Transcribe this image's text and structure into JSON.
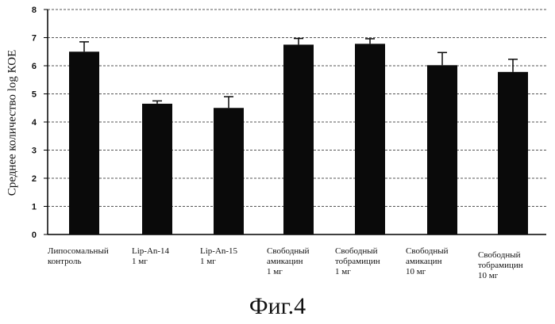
{
  "chart_data": {
    "type": "bar",
    "ylabel": "Среднее количество log КОЕ",
    "xlabel": "",
    "ylim": [
      0,
      8
    ],
    "yticks": [
      "0",
      "1",
      "2",
      "3",
      "4",
      "5",
      "6",
      "7",
      "8"
    ],
    "grid": "dashed horizontal",
    "categories": [
      "Липосомальный\nконтроль",
      "Lip-An-14\n1 мг",
      "Lip-An-15\n1 мг",
      "Свободный\nамикацин\n1 мг",
      "Свободный\nтобрамицин\n1 мг",
      "Свободный\nамикацин\n10 мг",
      "Свободный\nтобрамицин\n10 мг"
    ],
    "values": [
      6.5,
      4.65,
      4.5,
      6.75,
      6.78,
      6.02,
      5.78
    ],
    "errors": [
      0.35,
      0.1,
      0.4,
      0.22,
      0.18,
      0.45,
      0.45
    ],
    "colors": {
      "bar": "#0a0a0a",
      "grid": "#555555",
      "axis": "#000000"
    }
  },
  "caption": "Фиг.4"
}
